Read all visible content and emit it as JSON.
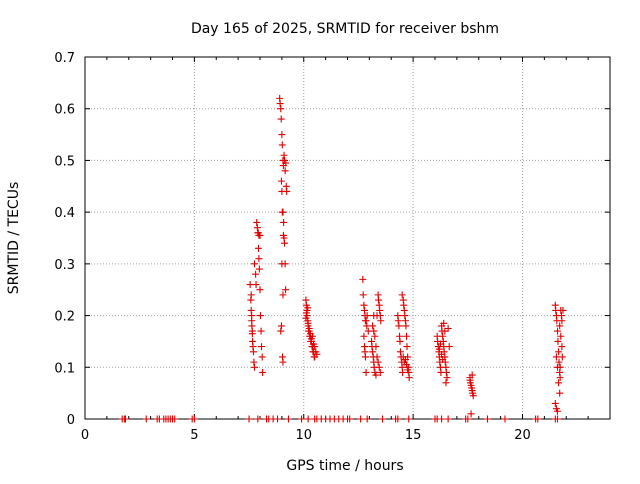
{
  "chart_data": {
    "type": "scatter",
    "title": "Day 165 of 2025, SRMTID for receiver bshm",
    "xlabel": "GPS time / hours",
    "ylabel": "SRMTID / TECUs",
    "xlim": [
      0,
      24
    ],
    "ylim": [
      0,
      0.7
    ],
    "x_ticks": [
      0,
      5,
      10,
      15,
      20
    ],
    "y_ticks": [
      0,
      0.1,
      0.2,
      0.3,
      0.4,
      0.5,
      0.6,
      0.7
    ],
    "x_tick_labels": [
      "0",
      "5",
      "10",
      "15",
      "20"
    ],
    "y_tick_labels": [
      "0",
      "0.1",
      "0.2",
      "0.3",
      "0.4",
      "0.5",
      "0.6",
      "0.7"
    ],
    "grid": true,
    "marker": "+",
    "color": "#e00000",
    "series": [
      {
        "name": "bshm",
        "points": [
          [
            1.7,
            0
          ],
          [
            1.8,
            0
          ],
          [
            1.85,
            0
          ],
          [
            2.8,
            0
          ],
          [
            3.3,
            0
          ],
          [
            3.4,
            0
          ],
          [
            3.6,
            0
          ],
          [
            3.7,
            0
          ],
          [
            3.8,
            0
          ],
          [
            3.9,
            0
          ],
          [
            4.0,
            0
          ],
          [
            4.1,
            0
          ],
          [
            4.9,
            0
          ],
          [
            5.0,
            0
          ],
          [
            7.5,
            0
          ],
          [
            7.9,
            0
          ],
          [
            8.3,
            0
          ],
          [
            8.4,
            0
          ],
          [
            8.6,
            0
          ],
          [
            8.8,
            0
          ],
          [
            9.3,
            0
          ],
          [
            9.9,
            0
          ],
          [
            10.2,
            0
          ],
          [
            10.5,
            0
          ],
          [
            10.6,
            0
          ],
          [
            10.8,
            0
          ],
          [
            11.0,
            0
          ],
          [
            11.2,
            0
          ],
          [
            11.4,
            0
          ],
          [
            11.6,
            0
          ],
          [
            11.8,
            0
          ],
          [
            12.0,
            0
          ],
          [
            12.1,
            0
          ],
          [
            12.6,
            0
          ],
          [
            12.9,
            0
          ],
          [
            13.6,
            0
          ],
          [
            14.2,
            0
          ],
          [
            14.3,
            0
          ],
          [
            14.8,
            0
          ],
          [
            16.0,
            0
          ],
          [
            16.1,
            0
          ],
          [
            16.3,
            0
          ],
          [
            16.6,
            0
          ],
          [
            17.4,
            0
          ],
          [
            17.5,
            0
          ],
          [
            18.4,
            0
          ],
          [
            19.2,
            0
          ],
          [
            20.6,
            0
          ],
          [
            20.7,
            0
          ],
          [
            21.5,
            0
          ],
          [
            21.6,
            0
          ],
          [
            7.55,
            0.26
          ],
          [
            7.6,
            0.24
          ],
          [
            7.6,
            0.21
          ],
          [
            7.62,
            0.19
          ],
          [
            7.63,
            0.18
          ],
          [
            7.65,
            0.17
          ],
          [
            7.66,
            0.15
          ],
          [
            7.68,
            0.14
          ],
          [
            7.7,
            0.13
          ],
          [
            7.72,
            0.11
          ],
          [
            7.75,
            0.1
          ],
          [
            7.62,
            0.2
          ],
          [
            7.65,
            0.165
          ],
          [
            7.58,
            0.23
          ],
          [
            7.75,
            0.3
          ],
          [
            7.8,
            0.28
          ],
          [
            7.82,
            0.26
          ],
          [
            7.85,
            0.38
          ],
          [
            7.88,
            0.37
          ],
          [
            7.9,
            0.36
          ],
          [
            7.92,
            0.36
          ],
          [
            7.93,
            0.33
          ],
          [
            7.95,
            0.31
          ],
          [
            7.97,
            0.29
          ],
          [
            8.0,
            0.25
          ],
          [
            8.02,
            0.2
          ],
          [
            8.05,
            0.17
          ],
          [
            8.07,
            0.14
          ],
          [
            8.1,
            0.12
          ],
          [
            8.12,
            0.09
          ],
          [
            7.95,
            0.355
          ],
          [
            8.0,
            0.355
          ],
          [
            8.9,
            0.62
          ],
          [
            8.92,
            0.61
          ],
          [
            8.95,
            0.6
          ],
          [
            8.97,
            0.58
          ],
          [
            9.0,
            0.55
          ],
          [
            9.02,
            0.53
          ],
          [
            9.05,
            0.5
          ],
          [
            9.07,
            0.49
          ],
          [
            9.1,
            0.51
          ],
          [
            9.12,
            0.5
          ],
          [
            9.15,
            0.48
          ],
          [
            8.98,
            0.46
          ],
          [
            9.0,
            0.44
          ],
          [
            9.02,
            0.4
          ],
          [
            9.05,
            0.4
          ],
          [
            9.08,
            0.38
          ],
          [
            9.1,
            0.35
          ],
          [
            9.12,
            0.34
          ],
          [
            9.15,
            0.3
          ],
          [
            9.17,
            0.25
          ],
          [
            9.05,
            0.24
          ],
          [
            9.0,
            0.3
          ],
          [
            8.98,
            0.18
          ],
          [
            8.95,
            0.17
          ],
          [
            9.03,
            0.12
          ],
          [
            9.05,
            0.11
          ],
          [
            9.2,
            0.45
          ],
          [
            9.22,
            0.44
          ],
          [
            9.18,
            0.495
          ],
          [
            9.07,
            0.355
          ],
          [
            10.1,
            0.23
          ],
          [
            10.12,
            0.22
          ],
          [
            10.15,
            0.21
          ],
          [
            10.15,
            0.2
          ],
          [
            10.18,
            0.19
          ],
          [
            10.2,
            0.18
          ],
          [
            10.22,
            0.17
          ],
          [
            10.25,
            0.17
          ],
          [
            10.27,
            0.16
          ],
          [
            10.3,
            0.16
          ],
          [
            10.32,
            0.15
          ],
          [
            10.35,
            0.15
          ],
          [
            10.38,
            0.14
          ],
          [
            10.4,
            0.14
          ],
          [
            10.42,
            0.13
          ],
          [
            10.45,
            0.13
          ],
          [
            10.48,
            0.12
          ],
          [
            10.5,
            0.12
          ],
          [
            10.2,
            0.185
          ],
          [
            10.25,
            0.175
          ],
          [
            10.3,
            0.165
          ],
          [
            10.35,
            0.155
          ],
          [
            10.4,
            0.16
          ],
          [
            10.45,
            0.145
          ],
          [
            10.5,
            0.14
          ],
          [
            10.55,
            0.13
          ],
          [
            10.6,
            0.125
          ],
          [
            10.1,
            0.195
          ],
          [
            10.12,
            0.205
          ],
          [
            10.18,
            0.215
          ],
          [
            12.7,
            0.27
          ],
          [
            12.72,
            0.24
          ],
          [
            12.75,
            0.22
          ],
          [
            12.78,
            0.21
          ],
          [
            12.8,
            0.2
          ],
          [
            12.82,
            0.19
          ],
          [
            12.85,
            0.19
          ],
          [
            12.88,
            0.18
          ],
          [
            12.75,
            0.16
          ],
          [
            12.78,
            0.14
          ],
          [
            12.8,
            0.13
          ],
          [
            12.82,
            0.12
          ],
          [
            12.85,
            0.09
          ],
          [
            12.9,
            0.2
          ],
          [
            12.95,
            0.17
          ],
          [
            13.1,
            0.15
          ],
          [
            13.12,
            0.14
          ],
          [
            13.15,
            0.13
          ],
          [
            13.18,
            0.12
          ],
          [
            13.2,
            0.11
          ],
          [
            13.22,
            0.1
          ],
          [
            13.25,
            0.09
          ],
          [
            13.15,
            0.18
          ],
          [
            13.2,
            0.17
          ],
          [
            13.25,
            0.16
          ],
          [
            13.3,
            0.14
          ],
          [
            13.35,
            0.12
          ],
          [
            13.4,
            0.11
          ],
          [
            13.45,
            0.1
          ],
          [
            13.5,
            0.09
          ],
          [
            13.4,
            0.24
          ],
          [
            13.42,
            0.23
          ],
          [
            13.45,
            0.22
          ],
          [
            13.47,
            0.21
          ],
          [
            13.5,
            0.2
          ],
          [
            13.52,
            0.19
          ],
          [
            13.3,
            0.085
          ],
          [
            13.35,
            0.2
          ],
          [
            13.2,
            0.2
          ],
          [
            14.3,
            0.2
          ],
          [
            14.32,
            0.19
          ],
          [
            14.35,
            0.18
          ],
          [
            14.38,
            0.16
          ],
          [
            14.4,
            0.15
          ],
          [
            14.42,
            0.13
          ],
          [
            14.45,
            0.12
          ],
          [
            14.48,
            0.11
          ],
          [
            14.5,
            0.1
          ],
          [
            14.52,
            0.09
          ],
          [
            14.55,
            0.23
          ],
          [
            14.57,
            0.22
          ],
          [
            14.6,
            0.21
          ],
          [
            14.62,
            0.2
          ],
          [
            14.65,
            0.19
          ],
          [
            14.67,
            0.18
          ],
          [
            14.7,
            0.16
          ],
          [
            14.72,
            0.14
          ],
          [
            14.75,
            0.12
          ],
          [
            14.78,
            0.1
          ],
          [
            14.8,
            0.09
          ],
          [
            14.82,
            0.08
          ],
          [
            14.5,
            0.24
          ],
          [
            14.55,
            0.12
          ],
          [
            14.6,
            0.11
          ],
          [
            14.65,
            0.115
          ],
          [
            14.7,
            0.105
          ],
          [
            14.75,
            0.095
          ],
          [
            16.1,
            0.16
          ],
          [
            16.12,
            0.15
          ],
          [
            16.15,
            0.14
          ],
          [
            16.18,
            0.13
          ],
          [
            16.2,
            0.12
          ],
          [
            16.22,
            0.11
          ],
          [
            16.25,
            0.1
          ],
          [
            16.27,
            0.09
          ],
          [
            16.3,
            0.18
          ],
          [
            16.32,
            0.17
          ],
          [
            16.35,
            0.16
          ],
          [
            16.38,
            0.15
          ],
          [
            16.4,
            0.14
          ],
          [
            16.42,
            0.13
          ],
          [
            16.45,
            0.12
          ],
          [
            16.47,
            0.11
          ],
          [
            16.5,
            0.1
          ],
          [
            16.52,
            0.09
          ],
          [
            16.55,
            0.08
          ],
          [
            16.4,
            0.185
          ],
          [
            16.45,
            0.17
          ],
          [
            16.6,
            0.175
          ],
          [
            16.65,
            0.14
          ],
          [
            16.5,
            0.07
          ],
          [
            16.3,
            0.125
          ],
          [
            16.35,
            0.115
          ],
          [
            16.2,
            0.135
          ],
          [
            16.25,
            0.145
          ],
          [
            17.6,
            0.08
          ],
          [
            17.62,
            0.07
          ],
          [
            17.65,
            0.065
          ],
          [
            17.68,
            0.06
          ],
          [
            17.7,
            0.055
          ],
          [
            17.72,
            0.05
          ],
          [
            17.75,
            0.045
          ],
          [
            17.6,
            0.075
          ],
          [
            17.7,
            0.085
          ],
          [
            17.65,
            0.01
          ],
          [
            21.5,
            0.22
          ],
          [
            21.52,
            0.21
          ],
          [
            21.55,
            0.2
          ],
          [
            21.57,
            0.19
          ],
          [
            21.6,
            0.17
          ],
          [
            21.62,
            0.15
          ],
          [
            21.65,
            0.13
          ],
          [
            21.67,
            0.11
          ],
          [
            21.7,
            0.09
          ],
          [
            21.72,
            0.08
          ],
          [
            21.75,
            0.21
          ],
          [
            21.78,
            0.2
          ],
          [
            21.8,
            0.19
          ],
          [
            21.55,
            0.12
          ],
          [
            21.6,
            0.1
          ],
          [
            21.65,
            0.07
          ],
          [
            21.7,
            0.05
          ],
          [
            21.5,
            0.03
          ],
          [
            21.55,
            0.02
          ],
          [
            21.6,
            0.015
          ],
          [
            21.7,
            0.18
          ],
          [
            21.75,
            0.16
          ],
          [
            21.8,
            0.14
          ],
          [
            21.82,
            0.12
          ],
          [
            21.85,
            0.21
          ],
          [
            21.72,
            0.1
          ]
        ]
      }
    ]
  }
}
